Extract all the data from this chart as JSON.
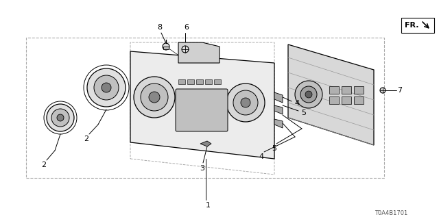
{
  "bg_color": "#ffffff",
  "line_color": "#000000",
  "dash_color": "#aaaaaa",
  "part_color": "#555555",
  "diagram_id": "T0A4B1701",
  "fr_label": "FR."
}
